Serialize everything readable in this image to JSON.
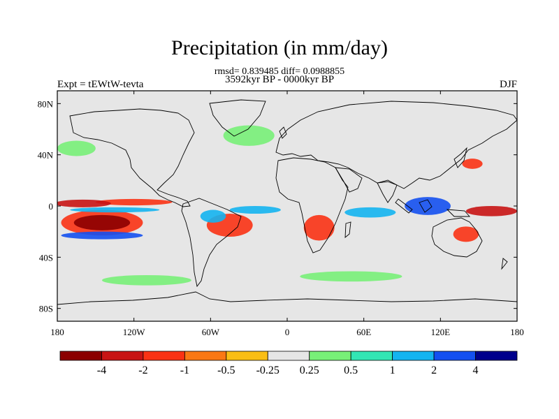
{
  "figure": {
    "title": "Precipitation (in mm/day)",
    "stats_line": "rmsd= 0.839485 diff= 0.0988855",
    "period_line": "3592kyr BP - 0000kyr BP",
    "left_label": "Expt = tEWtW-tevta",
    "right_label": "DJF"
  },
  "map": {
    "projection": "cylindrical-equidistant",
    "background_color": "#e6e6e6",
    "lon_ticks": [
      {
        "lon": -180,
        "label": "180"
      },
      {
        "lon": -120,
        "label": "120W"
      },
      {
        "lon": -60,
        "label": "60W"
      },
      {
        "lon": 0,
        "label": "0"
      },
      {
        "lon": 60,
        "label": "60E"
      },
      {
        "lon": 120,
        "label": "120E"
      },
      {
        "lon": 180,
        "label": "180"
      }
    ],
    "lat_ticks": [
      {
        "lat": 80,
        "label": "80N"
      },
      {
        "lat": 40,
        "label": "40N"
      },
      {
        "lat": 0,
        "label": "0"
      },
      {
        "lat": -40,
        "label": "40S"
      },
      {
        "lat": -80,
        "label": "80S"
      }
    ]
  },
  "colorbar": {
    "colors": [
      "#8b0000",
      "#c81414",
      "#fa3214",
      "#fa7814",
      "#fabe14",
      "#e6e6e6",
      "#78f078",
      "#32e6b4",
      "#14b4f0",
      "#1450f0",
      "#00008c"
    ],
    "labels": [
      "-4",
      "-2",
      "-1",
      "-0.5",
      "-0.25",
      "0.25",
      "0.5",
      "1",
      "2",
      "4"
    ]
  },
  "anomalies": [
    {
      "name": "n-pacific-dry",
      "lon": -160,
      "lat": 2,
      "rx": 22,
      "ry": 3,
      "level": 2,
      "color": "#c81414"
    },
    {
      "name": "n-pacific-dry-2",
      "lon": -120,
      "lat": 3,
      "rx": 30,
      "ry": 2.5,
      "level": 2,
      "color": "#fa3214"
    },
    {
      "name": "s-pacific-dry",
      "lon": -145,
      "lat": -13,
      "rx": 22,
      "ry": 6,
      "level": 1,
      "color": "#8b0000"
    },
    {
      "name": "s-pacific-dry-halo",
      "lon": -145,
      "lat": -13,
      "rx": 32,
      "ry": 10,
      "level": 2,
      "color": "#fa3214"
    },
    {
      "name": "s-pacific-wet",
      "lon": -145,
      "lat": -23,
      "rx": 32,
      "ry": 3,
      "level": 3,
      "color": "#1450f0"
    },
    {
      "name": "pacific-wet-north",
      "lon": -135,
      "lat": -3,
      "rx": 35,
      "ry": 2,
      "level": 3,
      "color": "#14b4f0"
    },
    {
      "name": "brazil-dry",
      "lon": -45,
      "lat": -15,
      "rx": 18,
      "ry": 9,
      "level": 2,
      "color": "#fa3214"
    },
    {
      "name": "amazon-wet",
      "lon": -58,
      "lat": -8,
      "rx": 10,
      "ry": 5,
      "level": 3,
      "color": "#14b4f0"
    },
    {
      "name": "atlantic-wet",
      "lon": -25,
      "lat": -3,
      "rx": 20,
      "ry": 3,
      "level": 3,
      "color": "#14b4f0"
    },
    {
      "name": "s-africa-dry",
      "lon": 25,
      "lat": -17,
      "rx": 12,
      "ry": 10,
      "level": 2,
      "color": "#fa3214"
    },
    {
      "name": "indian-wet",
      "lon": 65,
      "lat": -5,
      "rx": 20,
      "ry": 4,
      "level": 3,
      "color": "#14b4f0"
    },
    {
      "name": "maritime-wet",
      "lon": 110,
      "lat": 0,
      "rx": 18,
      "ry": 7,
      "level": 3,
      "color": "#1450f0"
    },
    {
      "name": "w-pacific-dry",
      "lon": 160,
      "lat": -4,
      "rx": 20,
      "ry": 4,
      "level": 2,
      "color": "#c81414"
    },
    {
      "name": "n-australia-dry",
      "lon": 140,
      "lat": -22,
      "rx": 10,
      "ry": 6,
      "level": 2,
      "color": "#fa3214"
    },
    {
      "name": "s-ocean-wet-1",
      "lon": -110,
      "lat": -58,
      "rx": 35,
      "ry": 4,
      "level": 4,
      "color": "#78f078"
    },
    {
      "name": "s-ocean-wet-2",
      "lon": 50,
      "lat": -55,
      "rx": 40,
      "ry": 4,
      "level": 4,
      "color": "#78f078"
    },
    {
      "name": "n-atlantic-wet",
      "lon": -30,
      "lat": 55,
      "rx": 20,
      "ry": 8,
      "level": 4,
      "color": "#78f078"
    },
    {
      "name": "n-pacific-wet",
      "lon": -165,
      "lat": 45,
      "rx": 15,
      "ry": 6,
      "level": 4,
      "color": "#78f078"
    },
    {
      "name": "japan-dry",
      "lon": 145,
      "lat": 33,
      "rx": 8,
      "ry": 4,
      "level": 2,
      "color": "#fa3214"
    }
  ]
}
